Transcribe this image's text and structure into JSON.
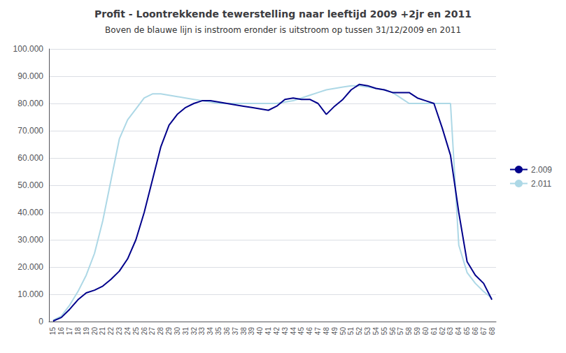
{
  "chart_data": {
    "type": "line",
    "title": "Profit - Loontrekkende tewerstelling naar leeftijd 2009 +2jr en 2011",
    "subtitle": "Boven de blauwe lijn is instroom eronder is uitstroom op tussen 31/12/2009 en 2011",
    "categories": [
      "15",
      "16",
      "17",
      "18",
      "19",
      "20",
      "21",
      "22",
      "23",
      "24",
      "25",
      "26",
      "27",
      "28",
      "29",
      "30",
      "31",
      "32",
      "33",
      "34",
      "35",
      "36",
      "37",
      "38",
      "39",
      "40",
      "41",
      "42",
      "43",
      "44",
      "45",
      "46",
      "47",
      "48",
      "49",
      "50",
      "51",
      "52",
      "53",
      "54",
      "55",
      "56",
      "57",
      "58",
      "59",
      "60",
      "61",
      "62",
      "63",
      "64",
      "65",
      "66",
      "67",
      "68"
    ],
    "series": [
      {
        "name": "2.009",
        "color": "#00008B",
        "values": [
          200,
          1500,
          4500,
          8000,
          10500,
          11500,
          13000,
          15500,
          18500,
          23000,
          30000,
          40000,
          52000,
          64000,
          72000,
          76000,
          78500,
          80000,
          81000,
          81000,
          80500,
          80000,
          79500,
          79000,
          78500,
          78000,
          77500,
          79000,
          81500,
          82000,
          81500,
          81500,
          80000,
          76000,
          79000,
          81500,
          85000,
          87000,
          86500,
          85500,
          85000,
          84000,
          84000,
          84000,
          82000,
          81000,
          80000,
          71000,
          61000,
          40000,
          22000,
          17000,
          14000,
          8000
        ]
      },
      {
        "name": "2.011",
        "color": "#ADD8E6",
        "values": [
          500,
          2000,
          6000,
          11000,
          17000,
          25000,
          37000,
          52000,
          67000,
          74000,
          78000,
          82000,
          83500,
          83500,
          83000,
          82500,
          82000,
          81500,
          81000,
          80500,
          80000,
          80000,
          80000,
          80000,
          80000,
          80000,
          80000,
          80000,
          80500,
          81000,
          82000,
          83000,
          84000,
          85000,
          85500,
          86000,
          86500,
          86500,
          86000,
          85500,
          85000,
          84000,
          82000,
          80000,
          80000,
          80000,
          80000,
          80000,
          80000,
          28000,
          18000,
          14000,
          11000,
          8500
        ]
      }
    ],
    "ylim": [
      0,
      100000
    ],
    "yticks": [
      0,
      {
        "value": 10000,
        "label": "10.000"
      },
      {
        "value": 20000,
        "label": "20.000"
      },
      {
        "value": 30000,
        "label": "30.000"
      },
      {
        "value": 40000,
        "label": "40.000"
      },
      {
        "value": 50000,
        "label": "50.000"
      },
      {
        "value": 60000,
        "label": "60.000"
      },
      {
        "value": 70000,
        "label": "70.000"
      },
      {
        "value": 80000,
        "label": "80.000"
      },
      {
        "value": 90000,
        "label": "90.000"
      },
      {
        "value": 100000,
        "label": "100.000"
      }
    ],
    "grid": true,
    "legend": "right"
  }
}
